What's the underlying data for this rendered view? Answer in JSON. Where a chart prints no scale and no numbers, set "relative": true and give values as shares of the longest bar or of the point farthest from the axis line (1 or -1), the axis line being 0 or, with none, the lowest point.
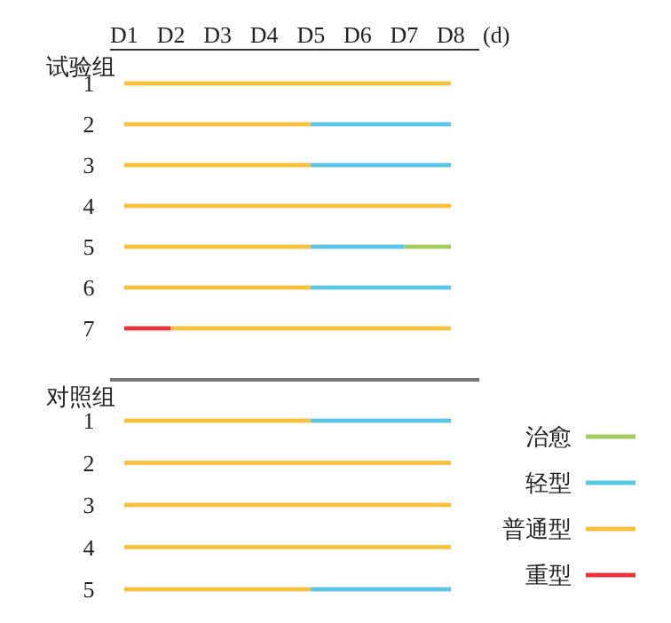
{
  "chart_data": [
    {
      "type": "bar",
      "orientation": "horizontal",
      "stacked": true,
      "relative": true,
      "title": "试验组",
      "xlabel": "(d)",
      "annotations": [
        "D1",
        "D2",
        "D3",
        "D4",
        "D5",
        "D6",
        "D7",
        "D8"
      ],
      "categories": [
        "1",
        "2",
        "3",
        "4",
        "5",
        "6",
        "7"
      ],
      "series": [
        {
          "color": "#e8333a",
          "values": [
            null,
            null,
            null,
            null,
            null,
            null,
            0.143
          ]
        },
        {
          "color": "#f9c03c",
          "values": [
            1,
            0.571,
            0.571,
            1,
            0.571,
            0.571,
            0.857
          ]
        },
        {
          "color": "#5bc5e8",
          "values": [
            null,
            0.429,
            0.429,
            null,
            0.286,
            0.429,
            null
          ]
        },
        {
          "color": "#a2cc5c",
          "values": [
            null,
            null,
            null,
            null,
            0.143,
            null,
            null
          ]
        }
      ]
    },
    {
      "type": "bar",
      "orientation": "horizontal",
      "stacked": true,
      "relative": true,
      "title": "对照组",
      "categories": [
        "1",
        "2",
        "3",
        "4",
        "5"
      ],
      "legend": "right",
      "series": [
        {
          "name": "重型",
          "color": "#e8333a",
          "values": [
            null,
            null,
            null,
            null,
            null
          ]
        },
        {
          "name": "普通型",
          "color": "#f9c03c",
          "values": [
            0.571,
            1,
            1,
            1,
            0.571
          ]
        },
        {
          "name": "轻型",
          "color": "#5bc5e8",
          "values": [
            0.429,
            null,
            null,
            null,
            0.429
          ]
        },
        {
          "name": "治愈",
          "color": "#a2cc5c",
          "values": [
            null,
            null,
            null,
            null,
            null
          ]
        }
      ]
    }
  ]
}
